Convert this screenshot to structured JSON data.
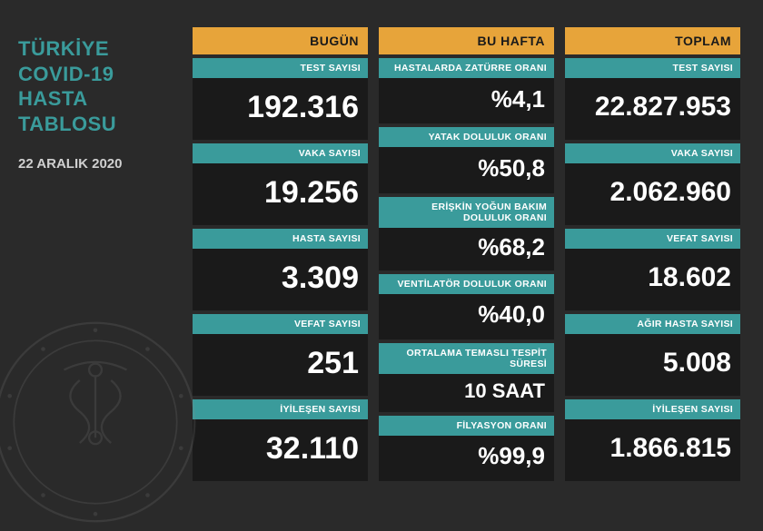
{
  "title_lines": "TÜRKİYE\nCOVID-19\nHASTA\nTABLOSU",
  "date": "22 ARALIK 2020",
  "columns": {
    "today": {
      "header": "BUGÜN",
      "cards": [
        {
          "label": "TEST SAYISI",
          "value": "192.316",
          "size": "v-large"
        },
        {
          "label": "VAKA SAYISI",
          "value": "19.256",
          "size": "v-large"
        },
        {
          "label": "HASTA SAYISI",
          "value": "3.309",
          "size": "v-large"
        },
        {
          "label": "VEFAT SAYISI",
          "value": "251",
          "size": "v-large"
        },
        {
          "label": "İYİLEŞEN SAYISI",
          "value": "32.110",
          "size": "v-large"
        }
      ]
    },
    "week": {
      "header": "BU HAFTA",
      "cards": [
        {
          "label": "HASTALARDA ZATÜRRE ORANI",
          "value": "%4,1",
          "size": "v-med"
        },
        {
          "label": "YATAK DOLULUK ORANI",
          "value": "%50,8",
          "size": "v-med"
        },
        {
          "label": "ERİŞKİN YOĞUN BAKIM DOLULUK ORANI",
          "value": "%68,2",
          "size": "v-med"
        },
        {
          "label": "VENTİLATÖR DOLULUK ORANI",
          "value": "%40,0",
          "size": "v-med"
        },
        {
          "label": "ORTALAMA TEMASLI TESPİT SÜRESİ",
          "value": "10 SAAT",
          "size": "v-sm"
        },
        {
          "label": "FİLYASYON ORANI",
          "value": "%99,9",
          "size": "v-med"
        }
      ]
    },
    "total": {
      "header": "TOPLAM",
      "cards": [
        {
          "label": "TEST SAYISI",
          "value": "22.827.953",
          "size": "v-xl"
        },
        {
          "label": "VAKA SAYISI",
          "value": "2.062.960",
          "size": "v-xl"
        },
        {
          "label": "VEFAT SAYISI",
          "value": "18.602",
          "size": "v-xl"
        },
        {
          "label": "AĞIR HASTA SAYISI",
          "value": "5.008",
          "size": "v-xl"
        },
        {
          "label": "İYİLEŞEN SAYISI",
          "value": "1.866.815",
          "size": "v-xl"
        }
      ]
    }
  },
  "colors": {
    "bg": "#2a2a2a",
    "card_bg": "#1a1a1a",
    "teal": "#3a9b9b",
    "orange": "#e7a43a",
    "text": "#ffffff",
    "date": "#d0d0d0"
  }
}
